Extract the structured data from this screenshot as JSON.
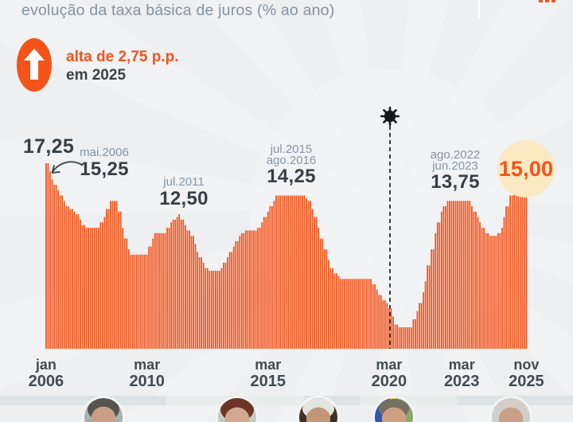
{
  "header": {
    "title": "evolução da taxa básica de juros (% ao ano)"
  },
  "badge": {
    "icon": "arrow-up-icon",
    "text_highlight": "alta de 2,75 p.p.",
    "text_secondary": "em 2025",
    "color": "#f4531a"
  },
  "colors": {
    "accent_orange": "#f4531a",
    "charcoal_text": "#3c4347",
    "slate_date_text": "#8496a6",
    "highlight_circle": "#fbe9c4",
    "background": "#edeff1"
  },
  "chart_data": {
    "type": "bar",
    "title": "evolução da taxa básica de juros (% ao ano)",
    "ylabel": "% ao ano",
    "ylim": [
      0,
      17.25
    ],
    "bar_color": "#f4531a",
    "grid": false,
    "x_start": "2006-01",
    "x_end": "2025-11",
    "x_frequency": "monthly",
    "monthly_runs_value_count": [
      [
        17.25,
        2
      ],
      [
        16.5,
        1
      ],
      [
        15.75,
        1
      ],
      [
        15.25,
        2
      ],
      [
        14.75,
        1
      ],
      [
        14.25,
        2
      ],
      [
        13.75,
        1
      ],
      [
        13.25,
        2
      ],
      [
        13.0,
        2
      ],
      [
        12.75,
        1
      ],
      [
        12.5,
        2
      ],
      [
        12.0,
        1
      ],
      [
        11.5,
        2
      ],
      [
        11.25,
        7
      ],
      [
        11.75,
        2
      ],
      [
        12.25,
        1
      ],
      [
        13.0,
        2
      ],
      [
        13.75,
        4
      ],
      [
        12.75,
        2
      ],
      [
        11.25,
        1
      ],
      [
        10.25,
        2
      ],
      [
        9.25,
        1
      ],
      [
        8.75,
        9
      ],
      [
        9.5,
        2
      ],
      [
        10.25,
        1
      ],
      [
        10.75,
        6
      ],
      [
        11.25,
        2
      ],
      [
        11.75,
        1
      ],
      [
        12.0,
        2
      ],
      [
        12.25,
        1
      ],
      [
        12.5,
        1
      ],
      [
        12.0,
        2
      ],
      [
        11.5,
        1
      ],
      [
        11.0,
        2
      ],
      [
        10.5,
        2
      ],
      [
        9.75,
        1
      ],
      [
        9.0,
        1
      ],
      [
        8.5,
        2
      ],
      [
        8.0,
        1
      ],
      [
        7.5,
        2
      ],
      [
        7.25,
        6
      ],
      [
        7.5,
        1
      ],
      [
        8.0,
        2
      ],
      [
        8.5,
        1
      ],
      [
        9.0,
        2
      ],
      [
        9.5,
        1
      ],
      [
        10.0,
        2
      ],
      [
        10.5,
        1
      ],
      [
        10.75,
        2
      ],
      [
        11.0,
        6
      ],
      [
        11.25,
        2
      ],
      [
        11.75,
        1
      ],
      [
        12.25,
        2
      ],
      [
        12.75,
        1
      ],
      [
        13.25,
        2
      ],
      [
        13.75,
        1
      ],
      [
        14.25,
        15
      ],
      [
        14.0,
        1
      ],
      [
        13.75,
        2
      ],
      [
        13.0,
        1
      ],
      [
        12.25,
        2
      ],
      [
        11.25,
        1
      ],
      [
        10.25,
        2
      ],
      [
        9.25,
        2
      ],
      [
        8.25,
        1
      ],
      [
        7.5,
        2
      ],
      [
        7.0,
        2
      ],
      [
        6.75,
        1
      ],
      [
        6.5,
        16
      ],
      [
        6.0,
        2
      ],
      [
        5.5,
        1
      ],
      [
        5.0,
        2
      ],
      [
        4.5,
        2
      ],
      [
        4.25,
        1
      ],
      [
        3.75,
        2
      ],
      [
        3.0,
        1
      ],
      [
        2.25,
        2
      ],
      [
        2.0,
        7
      ],
      [
        2.75,
        2
      ],
      [
        3.5,
        1
      ],
      [
        4.25,
        2
      ],
      [
        5.25,
        1
      ],
      [
        6.25,
        1
      ],
      [
        7.75,
        2
      ],
      [
        9.25,
        2
      ],
      [
        10.75,
        1
      ],
      [
        11.75,
        2
      ],
      [
        12.75,
        1
      ],
      [
        13.25,
        2
      ],
      [
        13.75,
        12
      ],
      [
        13.25,
        1
      ],
      [
        12.75,
        2
      ],
      [
        12.25,
        1
      ],
      [
        11.75,
        1
      ],
      [
        11.25,
        2
      ],
      [
        10.75,
        2
      ],
      [
        10.5,
        4
      ],
      [
        10.75,
        2
      ],
      [
        11.25,
        1
      ],
      [
        12.25,
        1
      ],
      [
        13.25,
        2
      ],
      [
        14.25,
        2
      ],
      [
        14.75,
        1
      ],
      [
        15.0,
        6
      ]
    ],
    "ticks": [
      {
        "at": "2006-01",
        "month": "jan",
        "year": "2006"
      },
      {
        "at": "2010-03",
        "month": "mar",
        "year": "2010"
      },
      {
        "at": "2015-03",
        "month": "mar",
        "year": "2015"
      },
      {
        "at": "2020-03",
        "month": "mar",
        "year": "2020"
      },
      {
        "at": "2023-03",
        "month": "mar",
        "year": "2023"
      },
      {
        "at": "2025-11",
        "month": "nov",
        "year": "2025"
      }
    ],
    "annotations": [
      {
        "at": "2006-01",
        "value": 17.25,
        "value_label": "17,25"
      },
      {
        "at": "2006-05",
        "value": 15.25,
        "date1": "mai.2006",
        "value_label": "15,25"
      },
      {
        "at": "2011-07",
        "value": 12.5,
        "date1": "jul.2011",
        "value_label": "12,50"
      },
      {
        "at": "2015-07",
        "value": 14.25,
        "date1": "jul.2015",
        "date2": "ago.2016",
        "value_label": "14,25"
      },
      {
        "at": "2022-08",
        "value": 13.75,
        "date1": "ago.2022",
        "date2": "jun.2023",
        "value_label": "13,75"
      },
      {
        "at": "2025-11",
        "value": 15.0,
        "value_label": "15,00",
        "highlighted": true
      }
    ],
    "covid_marker": {
      "at": "2020-03",
      "icon": "virus-icon"
    },
    "legend": null
  },
  "presidents_band": {
    "photos": [
      "photo-lula",
      "photo-dilma",
      "photo-temer",
      "photo-bolsonaro",
      "photo-lula"
    ]
  }
}
